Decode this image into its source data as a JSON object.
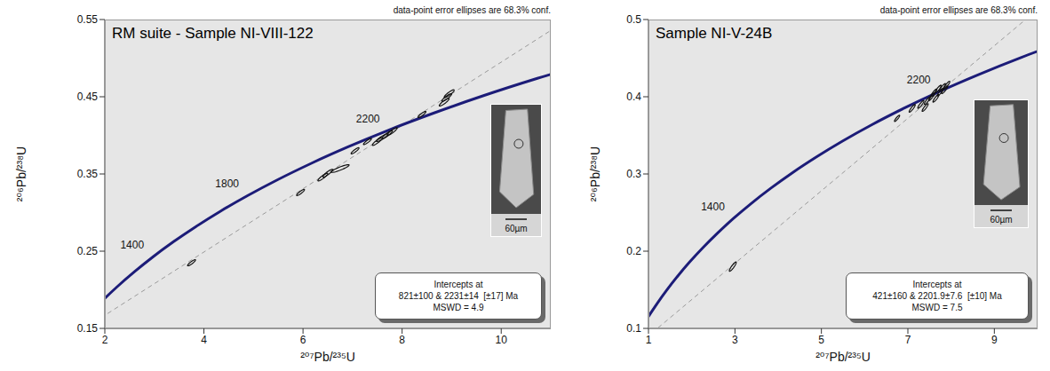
{
  "chart_data": [
    {
      "type": "scatter",
      "title": "RM suite - Sample NI-VIII-122",
      "xlabel": "²⁰⁷Pb/²³⁵U",
      "ylabel": "²⁰⁶Pb/²³⁸U",
      "note": "data-point error ellipses are 68.3% conf.",
      "intercepts": [
        "Intercepts at",
        "821±100 & 2231±14  [±17] Ma",
        "MSWD = 4.9"
      ],
      "scale_bar": "60µm",
      "xlim": [
        2,
        11
      ],
      "xticks": [
        2,
        4,
        6,
        8,
        10
      ],
      "ylim": [
        0.15,
        0.55
      ],
      "yticks": [
        0.15,
        0.25,
        0.35,
        0.45,
        0.55
      ],
      "points": {
        "color": "#111111",
        "error_correlation": 0.9,
        "x": [
          3.75,
          5.95,
          6.4,
          6.5,
          6.75,
          7.05,
          7.3,
          7.5,
          7.6,
          7.7,
          7.8,
          8.4,
          8.85,
          8.9,
          8.95
        ],
        "y": [
          0.235,
          0.326,
          0.346,
          0.351,
          0.357,
          0.38,
          0.392,
          0.392,
          0.397,
          0.401,
          0.405,
          0.427,
          0.443,
          0.449,
          0.454
        ],
        "x_err": [
          0.08,
          0.08,
          0.1,
          0.1,
          0.18,
          0.08,
          0.08,
          0.1,
          0.12,
          0.1,
          0.1,
          0.08,
          0.1,
          0.1,
          0.1
        ],
        "y_err": [
          0.004,
          0.004,
          0.005,
          0.005,
          0.005,
          0.004,
          0.004,
          0.005,
          0.005,
          0.005,
          0.005,
          0.004,
          0.005,
          0.005,
          0.005
        ]
      },
      "concordia": {
        "color": "#1c1c78",
        "labels": [
          1400,
          1800,
          2200
        ],
        "ages": [
          1000,
          1100,
          1200,
          1300,
          1400,
          1500,
          1600,
          1700,
          1800,
          1900,
          2000,
          2100,
          2200,
          2300,
          2400,
          2500,
          2600
        ],
        "x": [
          1.6774,
          1.9545,
          2.2603,
          2.5978,
          2.97,
          3.381,
          3.8342,
          4.3347,
          4.8867,
          5.4962,
          6.1686,
          6.9104,
          7.7292,
          8.6327,
          9.6294,
          10.7298,
          11.9439
        ],
        "y": [
          0.1678,
          0.1861,
          0.2046,
          0.2234,
          0.2426,
          0.262,
          0.2817,
          0.3018,
          0.3221,
          0.3428,
          0.3638,
          0.3851,
          0.4068,
          0.4287,
          0.4511,
          0.4738,
          0.4968
        ]
      },
      "discordia": {
        "color": "#9a9a9a",
        "line_style": "dashed",
        "x": [
          1.24,
          11.5
        ],
        "y": [
          0.1358,
          0.5563
        ]
      }
    },
    {
      "type": "scatter",
      "title": "Sample NI-V-24B",
      "xlabel": "²⁰⁷Pb/²³⁵U",
      "ylabel": "²⁰⁶Pb/²³⁸U",
      "note": "data-point error ellipses are 68.3% conf.",
      "intercepts": [
        "Intercepts at",
        "421±160 & 2201.9±7.6  [±10] Ma",
        "MSWD = 7.5"
      ],
      "scale_bar": "60µm",
      "xlim": [
        1,
        10
      ],
      "xticks": [
        1,
        3,
        5,
        7,
        9
      ],
      "ylim": [
        0.1,
        0.5
      ],
      "yticks": [
        0.1,
        0.2,
        0.3,
        0.4,
        0.5
      ],
      "points": {
        "color": "#111111",
        "error_correlation": 0.9,
        "x": [
          2.95,
          6.75,
          7.1,
          7.3,
          7.4,
          7.45,
          7.55,
          7.6,
          7.65,
          7.7,
          7.75,
          7.8,
          7.85,
          7.9
        ],
        "y": [
          0.18,
          0.372,
          0.385,
          0.39,
          0.386,
          0.395,
          0.4,
          0.405,
          0.398,
          0.41,
          0.406,
          0.412,
          0.409,
          0.415
        ],
        "x_err": [
          0.08,
          0.06,
          0.07,
          0.07,
          0.07,
          0.07,
          0.07,
          0.07,
          0.07,
          0.07,
          0.07,
          0.07,
          0.07,
          0.07
        ],
        "y_err": [
          0.006,
          0.004,
          0.005,
          0.005,
          0.005,
          0.005,
          0.005,
          0.005,
          0.005,
          0.005,
          0.005,
          0.005,
          0.005,
          0.005
        ]
      },
      "concordia": {
        "color": "#1c1c78",
        "labels": [
          1400,
          2200
        ],
        "ages": [
          600,
          700,
          800,
          900,
          1000,
          1100,
          1200,
          1300,
          1400,
          1500,
          1600,
          1700,
          1800,
          1900,
          2000,
          2100,
          2200,
          2300,
          2400,
          2500
        ],
        "x": [
          0.8057,
          0.9925,
          1.1987,
          1.4263,
          1.6774,
          1.9545,
          2.2603,
          2.5978,
          2.97,
          3.381,
          3.8342,
          4.3347,
          4.8867,
          5.4962,
          6.1686,
          6.9104,
          7.7292,
          8.6327,
          9.6294,
          10.7298
        ],
        "y": [
          0.0975,
          0.1147,
          0.1321,
          0.1498,
          0.1678,
          0.1861,
          0.2046,
          0.2234,
          0.2426,
          0.262,
          0.2817,
          0.3018,
          0.3221,
          0.3428,
          0.3638,
          0.3851,
          0.4068,
          0.4287,
          0.4511,
          0.4738
        ]
      },
      "discordia": {
        "color": "#9a9a9a",
        "line_style": "dashed",
        "x": [
          0.514,
          10.5
        ],
        "y": [
          0.0675,
          0.5365
        ]
      }
    }
  ]
}
